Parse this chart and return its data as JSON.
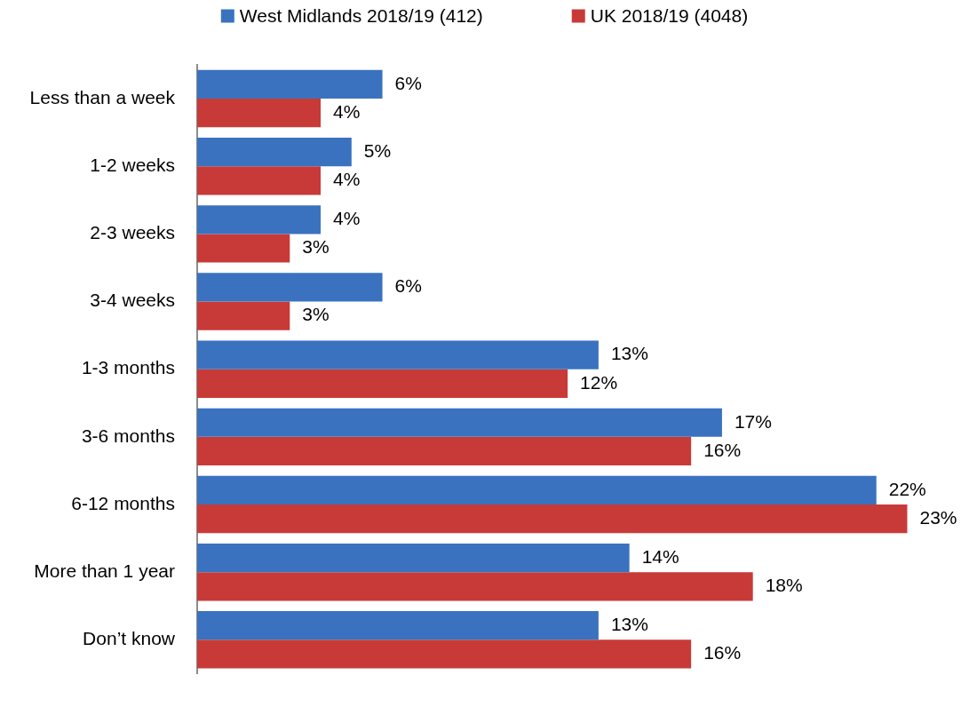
{
  "chart_data": {
    "type": "bar",
    "orientation": "horizontal",
    "categories": [
      "Less than a week",
      "1-2 weeks",
      "2-3 weeks",
      "3-4 weeks",
      "1-3 months",
      "3-6 months",
      "6-12 months",
      "More than 1 year",
      "Don’t know"
    ],
    "series": [
      {
        "name": "West Midlands 2018/19 (412)",
        "color": "#3a72c0",
        "values": [
          6,
          5,
          4,
          6,
          13,
          17,
          22,
          14,
          13
        ],
        "value_labels": [
          "6%",
          "5%",
          "4%",
          "6%",
          "13%",
          "17%",
          "22%",
          "14%",
          "13%"
        ]
      },
      {
        "name": "UK 2018/19 (4048)",
        "color": "#c83a38",
        "values": [
          4,
          4,
          3,
          3,
          12,
          16,
          23,
          18,
          16
        ],
        "value_labels": [
          "4%",
          "4%",
          "3%",
          "3%",
          "12%",
          "16%",
          "23%",
          "18%",
          "16%"
        ]
      }
    ],
    "tick_labels": "y",
    "grid": false,
    "legend": "top"
  }
}
